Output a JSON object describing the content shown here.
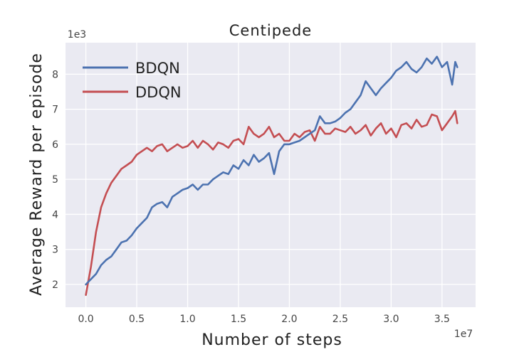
{
  "chart_data": {
    "type": "line",
    "title": "Centipede",
    "xlabel": "Number of steps",
    "ylabel": "Average Reward per episode",
    "x_offset_label": "1e7",
    "y_offset_label": "1e3",
    "xlim": [
      -0.2,
      3.83
    ],
    "ylim": [
      1.35,
      8.9
    ],
    "xticks": [
      0.0,
      0.5,
      1.0,
      1.5,
      2.0,
      2.5,
      3.0,
      3.5
    ],
    "xtick_labels": [
      "0.0",
      "0.5",
      "1.0",
      "1.5",
      "2.0",
      "2.5",
      "3.0",
      "3.5"
    ],
    "yticks": [
      2,
      3,
      4,
      5,
      6,
      7,
      8
    ],
    "ytick_labels": [
      "2",
      "3",
      "4",
      "5",
      "6",
      "7",
      "8"
    ],
    "grid": true,
    "legend_position": "top-left",
    "series": [
      {
        "name": "BDQN",
        "color": "#4c72b0",
        "x": [
          0.0,
          0.05,
          0.1,
          0.15,
          0.2,
          0.25,
          0.3,
          0.35,
          0.4,
          0.45,
          0.5,
          0.55,
          0.6,
          0.65,
          0.7,
          0.75,
          0.8,
          0.85,
          0.9,
          0.95,
          1.0,
          1.05,
          1.1,
          1.15,
          1.2,
          1.25,
          1.3,
          1.35,
          1.4,
          1.45,
          1.5,
          1.55,
          1.6,
          1.65,
          1.7,
          1.75,
          1.8,
          1.85,
          1.9,
          1.95,
          2.0,
          2.05,
          2.1,
          2.15,
          2.2,
          2.25,
          2.3,
          2.35,
          2.4,
          2.45,
          2.5,
          2.55,
          2.6,
          2.65,
          2.7,
          2.75,
          2.8,
          2.85,
          2.9,
          2.95,
          3.0,
          3.05,
          3.1,
          3.15,
          3.2,
          3.25,
          3.3,
          3.35,
          3.4,
          3.45,
          3.5,
          3.55,
          3.6,
          3.63,
          3.65
        ],
        "values": [
          2.0,
          2.15,
          2.3,
          2.55,
          2.7,
          2.8,
          3.0,
          3.2,
          3.25,
          3.4,
          3.6,
          3.75,
          3.9,
          4.2,
          4.3,
          4.35,
          4.2,
          4.5,
          4.6,
          4.7,
          4.75,
          4.85,
          4.7,
          4.85,
          4.85,
          5.0,
          5.1,
          5.2,
          5.15,
          5.4,
          5.3,
          5.55,
          5.4,
          5.7,
          5.5,
          5.6,
          5.75,
          5.15,
          5.8,
          6.0,
          6.0,
          6.05,
          6.1,
          6.2,
          6.3,
          6.4,
          6.8,
          6.6,
          6.6,
          6.65,
          6.75,
          6.9,
          7.0,
          7.2,
          7.4,
          7.8,
          7.6,
          7.4,
          7.6,
          7.75,
          7.9,
          8.1,
          8.2,
          8.35,
          8.15,
          8.05,
          8.2,
          8.45,
          8.3,
          8.5,
          8.2,
          8.35,
          7.7,
          8.35,
          8.2
        ]
      },
      {
        "name": "DDQN",
        "color": "#c44e52",
        "x": [
          0.0,
          0.05,
          0.1,
          0.15,
          0.2,
          0.25,
          0.3,
          0.35,
          0.4,
          0.45,
          0.5,
          0.55,
          0.6,
          0.65,
          0.7,
          0.75,
          0.8,
          0.85,
          0.9,
          0.95,
          1.0,
          1.05,
          1.1,
          1.15,
          1.2,
          1.25,
          1.3,
          1.35,
          1.4,
          1.45,
          1.5,
          1.55,
          1.6,
          1.65,
          1.7,
          1.75,
          1.8,
          1.85,
          1.9,
          1.95,
          2.0,
          2.05,
          2.1,
          2.15,
          2.2,
          2.25,
          2.3,
          2.35,
          2.4,
          2.45,
          2.5,
          2.55,
          2.6,
          2.65,
          2.7,
          2.75,
          2.8,
          2.85,
          2.9,
          2.95,
          3.0,
          3.05,
          3.1,
          3.15,
          3.2,
          3.25,
          3.3,
          3.35,
          3.4,
          3.45,
          3.5,
          3.55,
          3.6,
          3.63,
          3.65
        ],
        "values": [
          1.7,
          2.5,
          3.5,
          4.2,
          4.6,
          4.9,
          5.1,
          5.3,
          5.4,
          5.5,
          5.7,
          5.8,
          5.9,
          5.8,
          5.95,
          6.0,
          5.8,
          5.9,
          6.0,
          5.9,
          5.95,
          6.1,
          5.9,
          6.1,
          6.0,
          5.85,
          6.05,
          6.0,
          5.9,
          6.1,
          6.15,
          6.0,
          6.5,
          6.3,
          6.2,
          6.3,
          6.5,
          6.2,
          6.3,
          6.1,
          6.1,
          6.3,
          6.2,
          6.35,
          6.4,
          6.1,
          6.5,
          6.3,
          6.3,
          6.45,
          6.4,
          6.35,
          6.5,
          6.3,
          6.4,
          6.55,
          6.25,
          6.45,
          6.6,
          6.3,
          6.45,
          6.2,
          6.55,
          6.6,
          6.45,
          6.7,
          6.5,
          6.55,
          6.85,
          6.8,
          6.4,
          6.6,
          6.8,
          6.95,
          6.6
        ]
      }
    ]
  },
  "colors": {
    "plot_background": "#eaeaf2",
    "grid": "#ffffff"
  }
}
